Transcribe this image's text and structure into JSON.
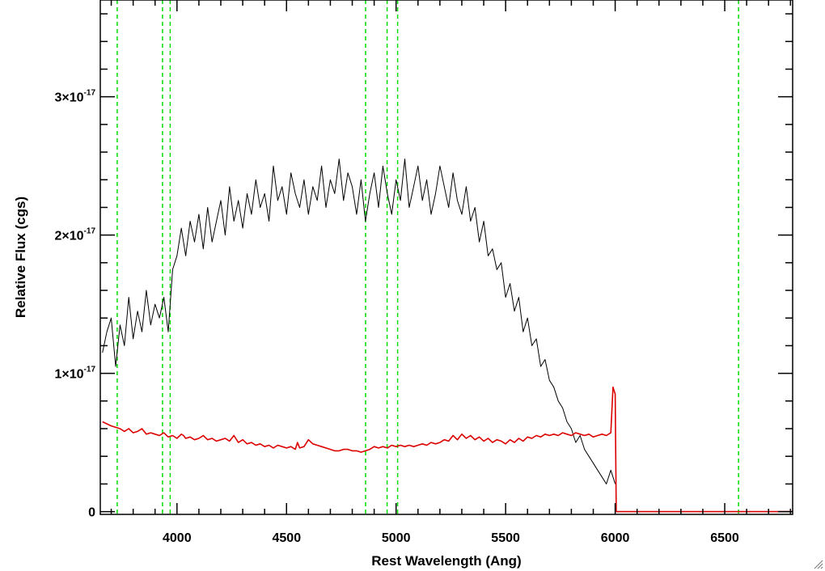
{
  "chart_data": {
    "type": "line",
    "title": "",
    "xlabel": "Rest Wavelength (Ang)",
    "ylabel": "Relative Flux (cgs)",
    "xlim": [
      3650,
      6810
    ],
    "ylim": [
      -2e-19,
      3.7e-17
    ],
    "x_ticks": [
      {
        "value": 4000,
        "label": "4000"
      },
      {
        "value": 4500,
        "label": "4500"
      },
      {
        "value": 5000,
        "label": "5000"
      },
      {
        "value": 5500,
        "label": "5500"
      },
      {
        "value": 6000,
        "label": "6000"
      },
      {
        "value": 6500,
        "label": "6500"
      }
    ],
    "y_ticks": [
      {
        "value": 0,
        "mantissa": "0",
        "exponent": ""
      },
      {
        "value": 1e-17,
        "mantissa": "1×10",
        "exponent": "-17"
      },
      {
        "value": 2e-17,
        "mantissa": "2×10",
        "exponent": "-17"
      },
      {
        "value": 3e-17,
        "mantissa": "3×10",
        "exponent": "-17"
      }
    ],
    "grid": false,
    "legend": "none",
    "vertical_lines": {
      "color": "#00dd00",
      "style": "dashed",
      "x": [
        3727,
        3934,
        3969,
        4861,
        4959,
        5007,
        6563
      ]
    },
    "series": [
      {
        "color": "#000000",
        "x": [
          3660,
          3680,
          3700,
          3720,
          3740,
          3760,
          3780,
          3800,
          3820,
          3840,
          3860,
          3880,
          3900,
          3920,
          3940,
          3960,
          3980,
          4000,
          4020,
          4040,
          4060,
          4080,
          4100,
          4120,
          4140,
          4160,
          4180,
          4200,
          4220,
          4240,
          4260,
          4280,
          4300,
          4320,
          4340,
          4360,
          4380,
          4400,
          4420,
          4440,
          4460,
          4480,
          4500,
          4520,
          4540,
          4560,
          4580,
          4600,
          4620,
          4640,
          4660,
          4680,
          4700,
          4720,
          4740,
          4760,
          4780,
          4800,
          4820,
          4840,
          4860,
          4880,
          4900,
          4920,
          4940,
          4960,
          4980,
          5000,
          5020,
          5040,
          5060,
          5080,
          5100,
          5120,
          5140,
          5160,
          5180,
          5200,
          5220,
          5240,
          5260,
          5280,
          5300,
          5320,
          5340,
          5360,
          5380,
          5400,
          5420,
          5440,
          5460,
          5480,
          5500,
          5520,
          5540,
          5560,
          5580,
          5600,
          5620,
          5640,
          5660,
          5680,
          5700,
          5720,
          5740,
          5760,
          5780,
          5800,
          5820,
          5840,
          5860,
          5880,
          5900,
          5920,
          5940,
          5960,
          5980,
          6000
        ],
        "y": [
          1.15e-17,
          1.3e-17,
          1.4e-17,
          1.05e-17,
          1.35e-17,
          1.2e-17,
          1.55e-17,
          1.25e-17,
          1.45e-17,
          1.3e-17,
          1.6e-17,
          1.35e-17,
          1.5e-17,
          1.4e-17,
          1.55e-17,
          1.3e-17,
          1.75e-17,
          1.85e-17,
          2.05e-17,
          1.85e-17,
          2.1e-17,
          1.95e-17,
          2.15e-17,
          1.9e-17,
          2.2e-17,
          1.95e-17,
          2.1e-17,
          2.25e-17,
          2e-17,
          2.35e-17,
          2.1e-17,
          2.25e-17,
          2.05e-17,
          2.3e-17,
          2.15e-17,
          2.4e-17,
          2.2e-17,
          2.3e-17,
          2.1e-17,
          2.5e-17,
          2.25e-17,
          2.35e-17,
          2.15e-17,
          2.45e-17,
          2.3e-17,
          2.2e-17,
          2.4e-17,
          2.15e-17,
          2.35e-17,
          2.25e-17,
          2.5e-17,
          2.2e-17,
          2.4e-17,
          2.3e-17,
          2.55e-17,
          2.25e-17,
          2.45e-17,
          2.35e-17,
          2.15e-17,
          2.4e-17,
          2.1e-17,
          2.3e-17,
          2.45e-17,
          2.2e-17,
          2.5e-17,
          2.3e-17,
          2.15e-17,
          2.4e-17,
          2.25e-17,
          2.55e-17,
          2.2e-17,
          2.35e-17,
          2.5e-17,
          2.25e-17,
          2.4e-17,
          2.15e-17,
          2.3e-17,
          2.5e-17,
          2.35e-17,
          2.2e-17,
          2.45e-17,
          2.25e-17,
          2.15e-17,
          2.35e-17,
          2.1e-17,
          2.2e-17,
          1.95e-17,
          2.1e-17,
          1.85e-17,
          1.9e-17,
          1.75e-17,
          1.8e-17,
          1.55e-17,
          1.65e-17,
          1.45e-17,
          1.55e-17,
          1.3e-17,
          1.4e-17,
          1.2e-17,
          1.25e-17,
          1.05e-17,
          1.1e-17,
          9.5e-18,
          9e-18,
          8e-18,
          7.5e-18,
          6.5e-18,
          6e-18,
          5e-18,
          5.5e-18,
          4.5e-18,
          4e-18,
          3.5e-18,
          3e-18,
          2.5e-18,
          2e-18,
          3e-18,
          2e-18
        ]
      },
      {
        "color": "#dd0000",
        "x": [
          3660,
          3700,
          3740,
          3760,
          3780,
          3800,
          3820,
          3840,
          3860,
          3880,
          3900,
          3920,
          3940,
          3960,
          3980,
          4000,
          4020,
          4030,
          4040,
          4060,
          4080,
          4100,
          4120,
          4140,
          4160,
          4180,
          4200,
          4220,
          4240,
          4260,
          4280,
          4300,
          4320,
          4340,
          4360,
          4380,
          4400,
          4420,
          4440,
          4460,
          4480,
          4500,
          4520,
          4540,
          4550,
          4560,
          4580,
          4600,
          4620,
          4640,
          4660,
          4680,
          4700,
          4720,
          4740,
          4760,
          4780,
          4800,
          4820,
          4840,
          4860,
          4880,
          4900,
          4920,
          4940,
          4960,
          4980,
          5000,
          5020,
          5040,
          5060,
          5080,
          5100,
          5120,
          5140,
          5160,
          5180,
          5200,
          5220,
          5240,
          5260,
          5280,
          5300,
          5320,
          5340,
          5360,
          5380,
          5400,
          5420,
          5440,
          5460,
          5480,
          5500,
          5520,
          5540,
          5560,
          5580,
          5600,
          5620,
          5640,
          5660,
          5680,
          5700,
          5720,
          5740,
          5760,
          5780,
          5800,
          5820,
          5840,
          5860,
          5880,
          5900,
          5920,
          5940,
          5960,
          5980,
          5990,
          6000,
          6005,
          6010,
          6020,
          6100,
          6200,
          6300,
          6400,
          6500,
          6600,
          6700,
          6810
        ],
        "y": [
          6.5e-18,
          6.2e-18,
          6e-18,
          5.8e-18,
          6e-18,
          5.7e-18,
          5.8e-18,
          6e-18,
          5.6e-18,
          5.7e-18,
          5.6e-18,
          5.5e-18,
          5.7e-18,
          5.4e-18,
          5.5e-18,
          5.3e-18,
          5.6e-18,
          5.5e-18,
          5.3e-18,
          5.4e-18,
          5.2e-18,
          5.3e-18,
          5.5e-18,
          5.2e-18,
          5.3e-18,
          5.1e-18,
          5.2e-18,
          5.3e-18,
          5.1e-18,
          5.5e-18,
          5e-18,
          5.2e-18,
          4.9e-18,
          5e-18,
          4.8e-18,
          4.9e-18,
          4.7e-18,
          4.8e-18,
          4.6e-18,
          4.8e-18,
          4.7e-18,
          4.6e-18,
          4.7e-18,
          4.5e-18,
          5e-18,
          4.6e-18,
          4.7e-18,
          5.2e-18,
          4.9e-18,
          4.8e-18,
          4.7e-18,
          4.6e-18,
          4.5e-18,
          4.4e-18,
          4.4e-18,
          4.5e-18,
          4.5e-18,
          4.4e-18,
          4.4e-18,
          4.3e-18,
          4.4e-18,
          4.5e-18,
          4.7e-18,
          4.6e-18,
          4.7e-18,
          4.6e-18,
          4.8e-18,
          4.7e-18,
          4.8e-18,
          4.7e-18,
          4.8e-18,
          4.7e-18,
          4.8e-18,
          4.9e-18,
          4.8e-18,
          5e-18,
          4.9e-18,
          5e-18,
          5.2e-18,
          5.1e-18,
          5.5e-18,
          5.2e-18,
          5.6e-18,
          5.3e-18,
          5.5e-18,
          5.2e-18,
          5.4e-18,
          5.1e-18,
          5.3e-18,
          5e-18,
          5.2e-18,
          5.1e-18,
          4.9e-18,
          5.2e-18,
          5e-18,
          5.3e-18,
          5.1e-18,
          5.4e-18,
          5.3e-18,
          5.5e-18,
          5.4e-18,
          5.6e-18,
          5.5e-18,
          5.6e-18,
          5.5e-18,
          5.7e-18,
          5.6e-18,
          5.5e-18,
          5.7e-18,
          5.6e-18,
          5.5e-18,
          5.6e-18,
          5.4e-18,
          5.5e-18,
          5.6e-18,
          5.5e-18,
          5.7e-18,
          9e-18,
          8.5e-18,
          0.0,
          0.0,
          0.0,
          0.0,
          0.0,
          0.0,
          0.0,
          0.0,
          0.0,
          0.0,
          0.0
        ]
      }
    ]
  }
}
